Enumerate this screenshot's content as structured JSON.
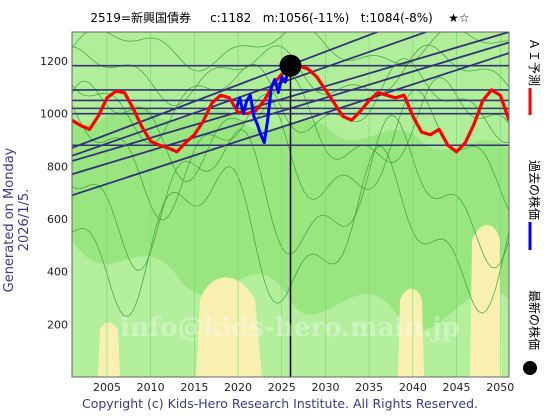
{
  "header": {
    "title": "2519=新興国債券",
    "current": "c:1182",
    "mid": "m:1056(-11%)",
    "target": "t:1084(-8%)",
    "stars": "★☆"
  },
  "y_axis_caption": "Generated on Monday 2026/1/5.",
  "footer": "Copyright (c) Kids-Hero Research Institute. All Rights Reserved.",
  "watermark": "info@kids-hero.main.jp",
  "legend": [
    {
      "label": "ＡＩ予測",
      "color": "#ff0000"
    },
    {
      "label": "過去の株価",
      "color": "#0000ff"
    },
    {
      "label": "最新の株価",
      "color": "#000000"
    }
  ],
  "colors": {
    "background": "#99e680",
    "ai_line": "#ff0000",
    "past_line": "#0000ff",
    "trend_lines": "#333377",
    "envelope_lines": "#339933",
    "zone": "#f7f0b0"
  },
  "chart_data": {
    "type": "line",
    "xlim": [
      2001,
      2051
    ],
    "ylim": [
      0,
      1310
    ],
    "xticks": [
      2005,
      2010,
      2015,
      2020,
      2025,
      2030,
      2035,
      2040,
      2045,
      2050
    ],
    "yticks": [
      200,
      400,
      600,
      800,
      1000,
      1200
    ],
    "latest": {
      "x": 2026.0,
      "y": 1182
    },
    "series": [
      {
        "name": "ＡＩ予測",
        "color": "#ff0000",
        "points": [
          [
            2001,
            975
          ],
          [
            2002,
            955
          ],
          [
            2003,
            940
          ],
          [
            2004,
            990
          ],
          [
            2005,
            1060
          ],
          [
            2006,
            1085
          ],
          [
            2007,
            1080
          ],
          [
            2008,
            1020
          ],
          [
            2009,
            950
          ],
          [
            2010,
            895
          ],
          [
            2011,
            880
          ],
          [
            2012,
            870
          ],
          [
            2013,
            855
          ],
          [
            2014,
            890
          ],
          [
            2015,
            920
          ],
          [
            2016,
            970
          ],
          [
            2017,
            1040
          ],
          [
            2018,
            1070
          ],
          [
            2019,
            1060
          ],
          [
            2020,
            1005
          ],
          [
            2021,
            1000
          ],
          [
            2022,
            1010
          ],
          [
            2023,
            1050
          ],
          [
            2024,
            1110
          ],
          [
            2025,
            1150
          ],
          [
            2026,
            1160
          ],
          [
            2027,
            1180
          ],
          [
            2028,
            1170
          ],
          [
            2029,
            1140
          ],
          [
            2030,
            1090
          ],
          [
            2031,
            1040
          ],
          [
            2032,
            990
          ],
          [
            2033,
            975
          ],
          [
            2034,
            1010
          ],
          [
            2035,
            1050
          ],
          [
            2036,
            1080
          ],
          [
            2037,
            1070
          ],
          [
            2038,
            1060
          ],
          [
            2039,
            1070
          ],
          [
            2040,
            990
          ],
          [
            2041,
            930
          ],
          [
            2042,
            920
          ],
          [
            2043,
            940
          ],
          [
            2044,
            880
          ],
          [
            2045,
            855
          ],
          [
            2046,
            890
          ],
          [
            2047,
            960
          ],
          [
            2048,
            1050
          ],
          [
            2049,
            1090
          ],
          [
            2050,
            1070
          ],
          [
            2051,
            975
          ]
        ]
      },
      {
        "name": "過去の株価",
        "color": "#0000ff",
        "points": [
          [
            2019.8,
            1020
          ],
          [
            2020.2,
            1060
          ],
          [
            2020.6,
            1000
          ],
          [
            2021.0,
            1050
          ],
          [
            2021.4,
            1070
          ],
          [
            2021.8,
            990
          ],
          [
            2022.2,
            960
          ],
          [
            2022.6,
            920
          ],
          [
            2023.0,
            890
          ],
          [
            2023.4,
            980
          ],
          [
            2023.8,
            1100
          ],
          [
            2024.2,
            1130
          ],
          [
            2024.6,
            1080
          ],
          [
            2025.0,
            1140
          ],
          [
            2025.4,
            1120
          ],
          [
            2025.8,
            1170
          ],
          [
            2026.0,
            1182
          ]
        ]
      }
    ],
    "trend_lines": [
      {
        "x": [
          2001,
          2051
        ],
        "y": [
          690,
          1230
        ]
      },
      {
        "x": [
          2001,
          2051
        ],
        "y": [
          770,
          1270
        ]
      },
      {
        "x": [
          2001,
          2051
        ],
        "y": [
          820,
          1310
        ]
      },
      {
        "x": [
          2001,
          2051
        ],
        "y": [
          840,
          1420
        ]
      },
      {
        "x": [
          2001,
          2051
        ],
        "y": [
          870,
          1500
        ]
      }
    ],
    "horizontal_levels": [
      1182,
      1090,
      1050,
      1020,
      1000,
      880
    ]
  }
}
